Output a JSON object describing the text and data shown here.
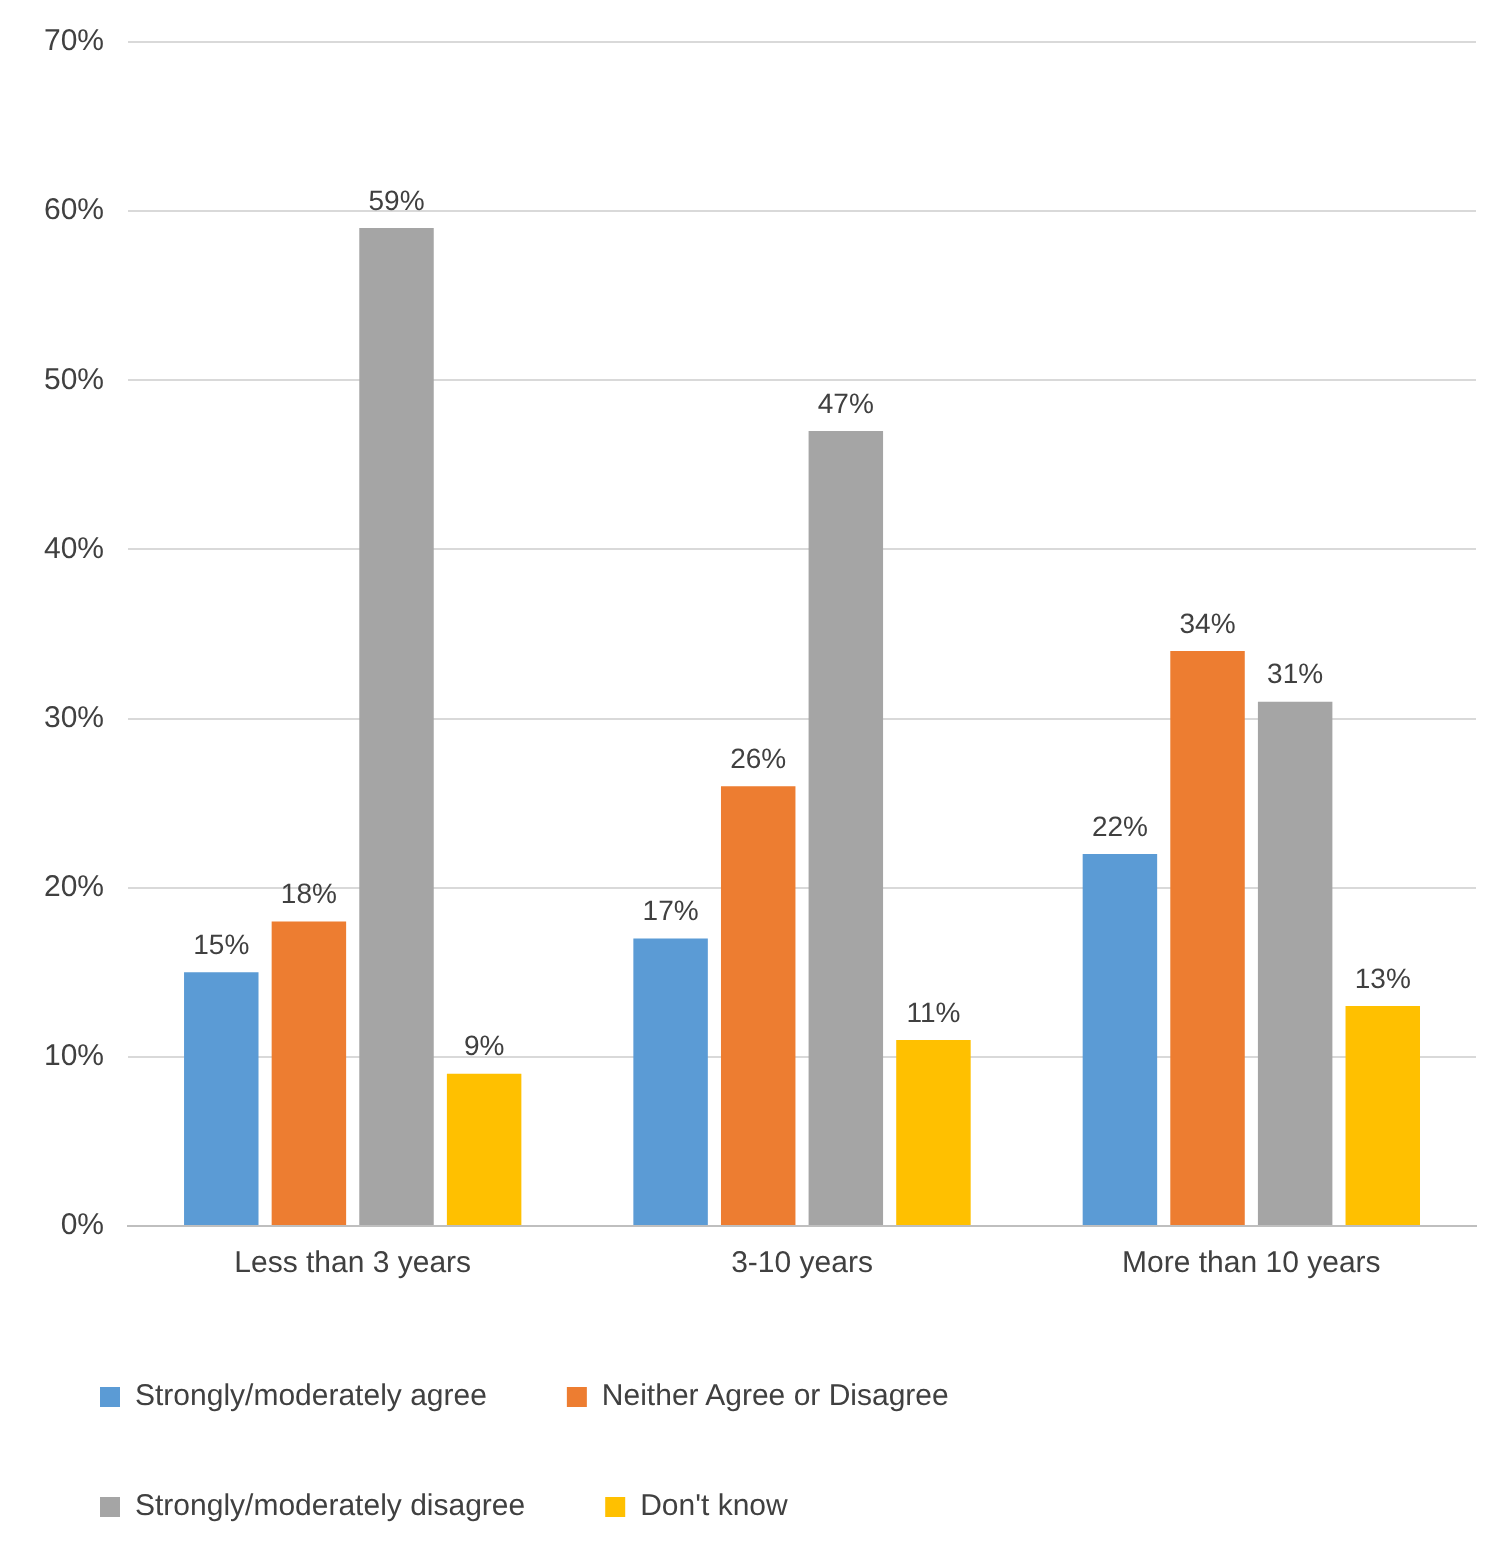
{
  "chart_data": {
    "type": "bar",
    "categories": [
      "Less than 3 years",
      "3-10 years",
      "More than 10 years"
    ],
    "series": [
      {
        "name": "Strongly/moderately agree",
        "color": "#5b9bd5",
        "values": [
          15,
          17,
          22
        ],
        "value_labels": [
          "15%",
          "17%",
          "22%"
        ]
      },
      {
        "name": "Neither Agree or Disagree",
        "color": "#ed7d31",
        "values": [
          18,
          26,
          34
        ],
        "value_labels": [
          "18%",
          "26%",
          "34%"
        ]
      },
      {
        "name": "Strongly/moderately disagree",
        "color": "#a5a5a5",
        "values": [
          59,
          47,
          31
        ],
        "value_labels": [
          "59%",
          "47%",
          "31%"
        ]
      },
      {
        "name": "Don't know",
        "color": "#ffc000",
        "values": [
          9,
          11,
          13
        ],
        "value_labels": [
          "9%",
          "11%",
          "13%"
        ]
      }
    ],
    "ylim": [
      0,
      70
    ],
    "yticks": [
      {
        "value": 0,
        "label": "0%"
      },
      {
        "value": 10,
        "label": "10%"
      },
      {
        "value": 20,
        "label": "20%"
      },
      {
        "value": 30,
        "label": "30%"
      },
      {
        "value": 40,
        "label": "40%"
      },
      {
        "value": 50,
        "label": "50%"
      },
      {
        "value": 60,
        "label": "60%"
      },
      {
        "value": 70,
        "label": "70%"
      }
    ],
    "grid": "y",
    "legend": "bottom"
  }
}
